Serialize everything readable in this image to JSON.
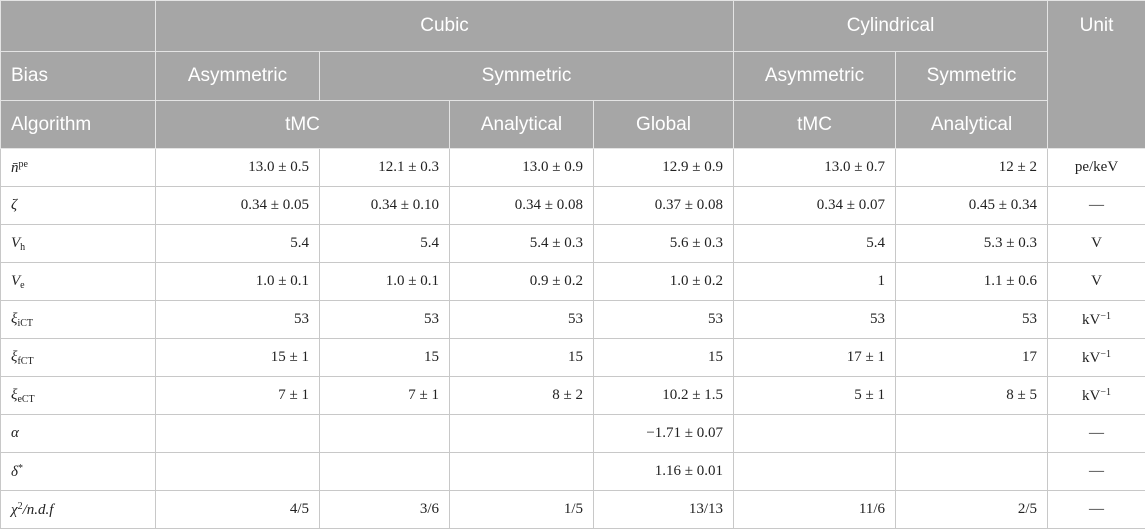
{
  "header": {
    "top": {
      "group_cubic": "Cubic",
      "group_cylindrical": "Cylindrical",
      "unit": "Unit"
    },
    "bias": {
      "label": "Bias",
      "cubic_asym": "Asymmetric",
      "cubic_sym": "Symmetric",
      "cyl_asym": "Asymmetric",
      "cyl_sym": "Symmetric"
    },
    "algorithm": {
      "label": "Algorithm",
      "cubic_tmc": "tMC",
      "cubic_analytical": "Analytical",
      "cubic_global": "Global",
      "cyl_tmc": "tMC",
      "cyl_analytical": "Analytical"
    }
  },
  "rows": [
    {
      "sym": "n̄",
      "sup": "pe",
      "sub": "",
      "cells": [
        "13.0 ± 0.5",
        "12.1 ± 0.3",
        "13.0 ± 0.9",
        "12.9 ± 0.9",
        "13.0 ± 0.7",
        "12 ± 2"
      ],
      "unit": "pe/keV",
      "unit_sup": ""
    },
    {
      "sym": "ζ",
      "sup": "",
      "sub": "",
      "cells": [
        "0.34 ± 0.05",
        "0.34 ± 0.10",
        "0.34 ± 0.08",
        "0.37 ± 0.08",
        "0.34 ± 0.07",
        "0.45 ± 0.34"
      ],
      "unit": "—",
      "unit_sup": ""
    },
    {
      "sym": "V",
      "sup": "",
      "sub": "h",
      "cells": [
        "5.4",
        "5.4",
        "5.4 ± 0.3",
        "5.6 ± 0.3",
        "5.4",
        "5.3 ± 0.3"
      ],
      "unit": "V",
      "unit_sup": ""
    },
    {
      "sym": "V",
      "sup": "",
      "sub": "e",
      "cells": [
        "1.0 ± 0.1",
        "1.0 ± 0.1",
        "0.9 ± 0.2",
        "1.0 ± 0.2",
        "1",
        "1.1 ± 0.6"
      ],
      "unit": "V",
      "unit_sup": ""
    },
    {
      "sym": "ξ",
      "sup": "",
      "sub": "iCT",
      "cells": [
        "53",
        "53",
        "53",
        "53",
        "53",
        "53"
      ],
      "unit": "kV",
      "unit_sup": "−1"
    },
    {
      "sym": "ξ",
      "sup": "",
      "sub": "fCT",
      "cells": [
        "15 ± 1",
        "15",
        "15",
        "15",
        "17 ± 1",
        "17"
      ],
      "unit": "kV",
      "unit_sup": "−1"
    },
    {
      "sym": "ξ",
      "sup": "",
      "sub": "eCT",
      "cells": [
        "7 ± 1",
        "7 ± 1",
        "8 ± 2",
        "10.2 ± 1.5",
        "5 ± 1",
        "8 ± 5"
      ],
      "unit": "kV",
      "unit_sup": "−1"
    },
    {
      "sym": "α",
      "sup": "",
      "sub": "",
      "cells": [
        "",
        "",
        "",
        "−1.71 ± 0.07",
        "",
        ""
      ],
      "unit": "—",
      "unit_sup": ""
    },
    {
      "sym": "δ",
      "sup": "*",
      "sub": "",
      "cells": [
        "",
        "",
        "",
        "1.16 ± 0.01",
        "",
        ""
      ],
      "unit": "—",
      "unit_sup": ""
    },
    {
      "sym": "χ",
      "sup": "2",
      "sub": "",
      "tail": "/n.d.f",
      "cells": [
        "4/5",
        "3/6",
        "1/5",
        "13/13",
        "11/6",
        "2/5"
      ],
      "unit": "—",
      "unit_sup": ""
    }
  ]
}
